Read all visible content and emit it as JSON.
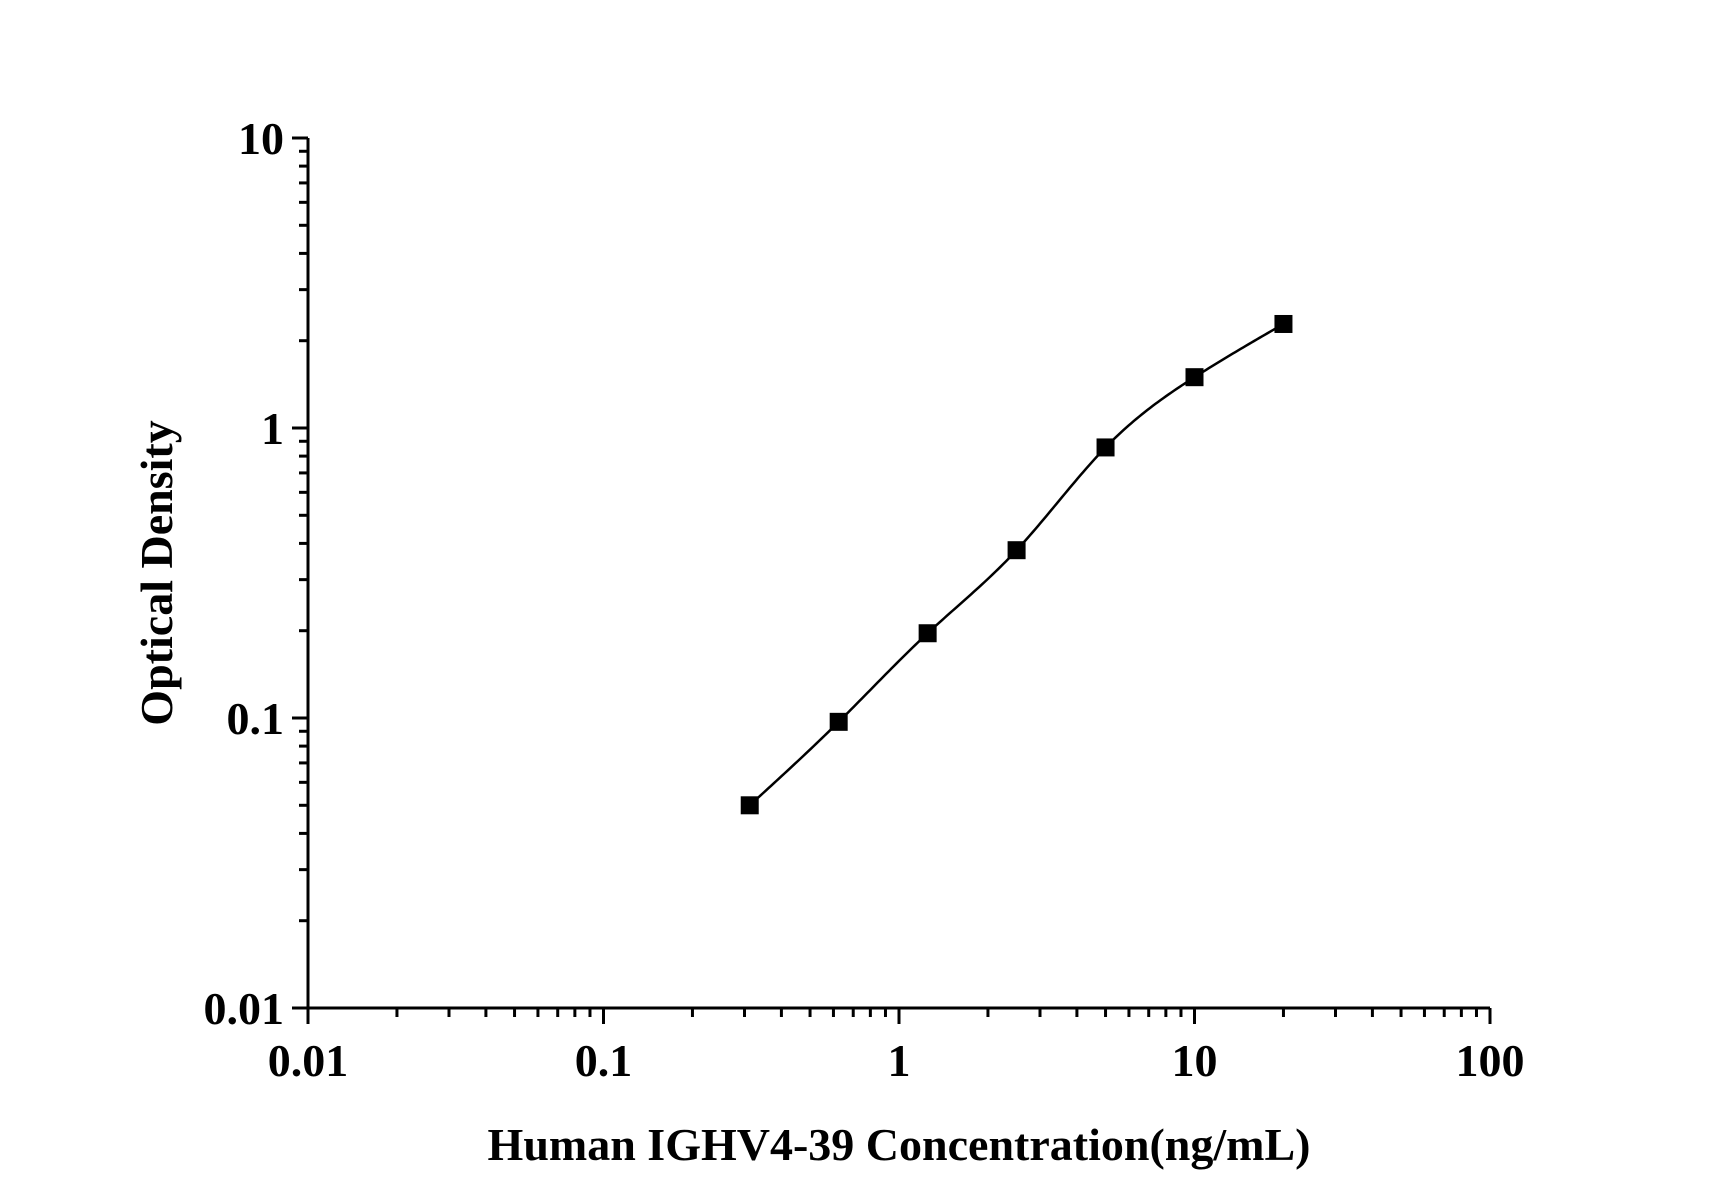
{
  "chart_data": {
    "type": "scatter",
    "title": "",
    "xlabel": "Human IGHV4-39 Concentration(ng/mL)",
    "ylabel": "Optical Density",
    "xscale": "log",
    "yscale": "log",
    "xlim": [
      0.01,
      100
    ],
    "ylim": [
      0.01,
      10
    ],
    "x_tick_labels": [
      "0.01",
      "0.1",
      "1",
      "10",
      "100"
    ],
    "y_tick_labels": [
      "0.01",
      "0.1",
      "1",
      "10"
    ],
    "grid": false,
    "legend": "none",
    "marker": "square",
    "series": [
      {
        "x": [
          0.3125,
          0.625,
          1.25,
          2.5,
          5,
          10,
          20
        ],
        "y": [
          0.05,
          0.097,
          0.196,
          0.379,
          0.857,
          1.497,
          2.284
        ],
        "fit_curve": true
      }
    ]
  },
  "colors": {
    "marker": "#000000",
    "line": "#000000",
    "background": "#ffffff"
  }
}
